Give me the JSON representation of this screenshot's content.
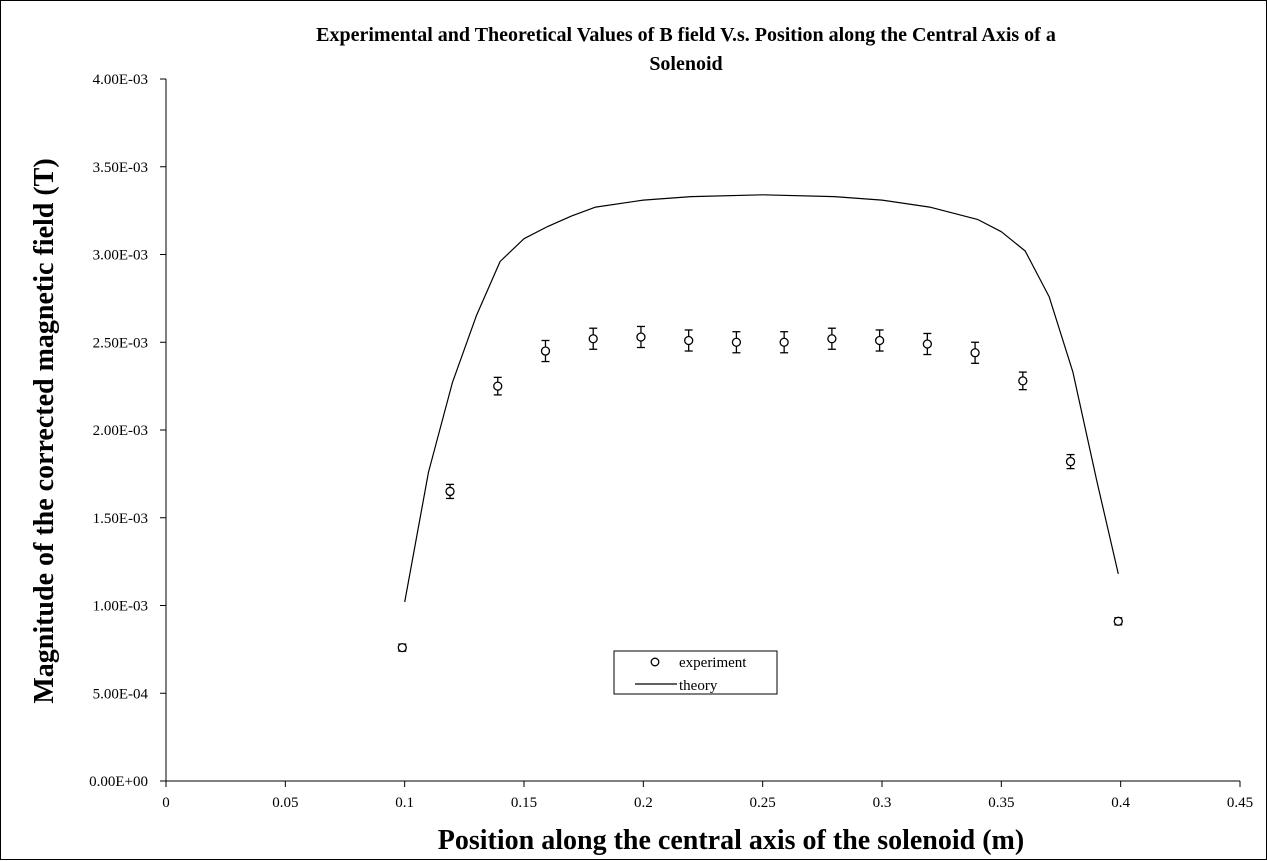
{
  "chart_data": {
    "type": "scatter",
    "title_line1": "Experimental and Theoretical Values of B field V.s. Position along the Central Axis of a",
    "title_line2": "Solenoid",
    "xlabel": "Position along the central axis of the solenoid (m)",
    "ylabel": "Magnitude of the corrected magnetic field (T)",
    "xlim": [
      0,
      0.45
    ],
    "ylim": [
      0,
      0.004
    ],
    "x_ticks": [
      0,
      0.05,
      0.1,
      0.15,
      0.2,
      0.25,
      0.3,
      0.35,
      0.4,
      0.45
    ],
    "x_tick_labels": [
      "0",
      "0.05",
      "0.1",
      "0.15",
      "0.2",
      "0.25",
      "0.3",
      "0.35",
      "0.4",
      "0.45"
    ],
    "y_ticks": [
      0,
      0.0005,
      0.001,
      0.0015,
      0.002,
      0.0025,
      0.003,
      0.0035,
      0.004
    ],
    "y_tick_labels": [
      "0.00E+00",
      "5.00E-04",
      "1.00E-03",
      "1.50E-03",
      "2.00E-03",
      "2.50E-03",
      "3.00E-03",
      "3.50E-03",
      "4.00E-03"
    ],
    "grid": false,
    "legend_placement": "bottom-center",
    "series": [
      {
        "name": "experiment",
        "style": "open-circle-with-error-bars",
        "x": [
          0.099,
          0.119,
          0.139,
          0.159,
          0.179,
          0.199,
          0.219,
          0.239,
          0.259,
          0.279,
          0.299,
          0.319,
          0.339,
          0.359,
          0.379,
          0.399
        ],
        "y": [
          0.00076,
          0.00165,
          0.00225,
          0.00245,
          0.00252,
          0.00253,
          0.00251,
          0.0025,
          0.0025,
          0.00252,
          0.00251,
          0.00249,
          0.00244,
          0.00228,
          0.00182,
          0.00091
        ],
        "y_err": [
          2e-05,
          4e-05,
          5e-05,
          6e-05,
          6e-05,
          6e-05,
          6e-05,
          6e-05,
          6e-05,
          6e-05,
          6e-05,
          6e-05,
          6e-05,
          5e-05,
          4e-05,
          2e-05
        ]
      },
      {
        "name": "theory",
        "style": "line",
        "x": [
          0.1,
          0.11,
          0.12,
          0.13,
          0.14,
          0.15,
          0.16,
          0.17,
          0.18,
          0.2,
          0.22,
          0.25,
          0.28,
          0.3,
          0.32,
          0.34,
          0.35,
          0.36,
          0.37,
          0.38,
          0.39,
          0.399
        ],
        "y": [
          0.00102,
          0.00176,
          0.00227,
          0.00265,
          0.00296,
          0.00309,
          0.00316,
          0.00322,
          0.00327,
          0.00331,
          0.00333,
          0.00334,
          0.00333,
          0.00331,
          0.00327,
          0.0032,
          0.00313,
          0.00302,
          0.00276,
          0.00233,
          0.00171,
          0.00118
        ]
      }
    ]
  }
}
